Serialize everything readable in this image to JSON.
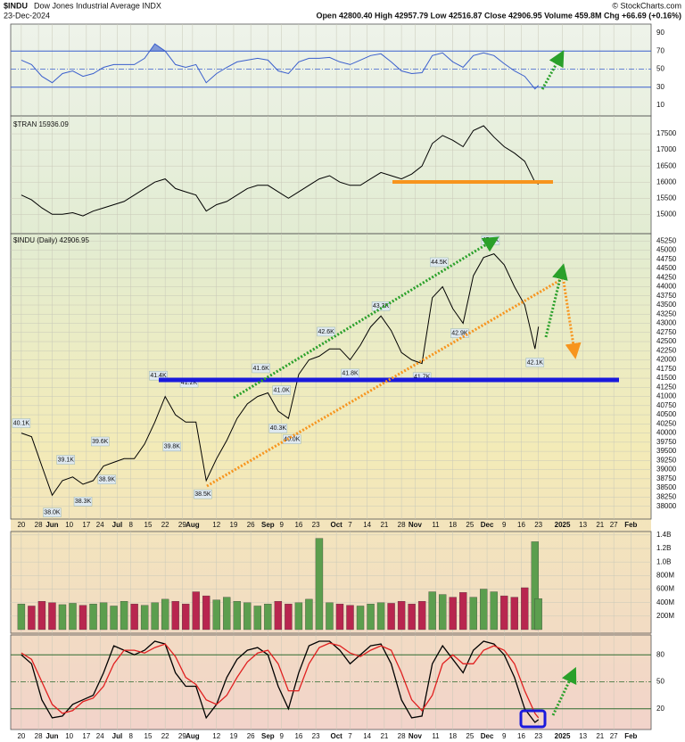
{
  "header": {
    "symbol": "$INDU",
    "name": "Dow Jones Industrial Average INDX",
    "date": "23-Dec-2024",
    "quote": "Open 42800.40 High 42957.79 Low 42516.87 Close 42906.95 Volume 459.8M Chg +66.69 (+0.16%)",
    "credit": "© StockCharts.com"
  },
  "chart_data": [
    {
      "type": "line",
      "name": "rsi",
      "x": [
        0,
        3,
        6,
        9,
        12,
        15,
        18,
        21,
        24,
        27,
        30,
        33,
        36,
        39,
        42,
        45,
        48,
        51,
        54,
        57,
        60,
        63,
        66,
        69,
        72,
        75,
        78,
        81,
        84,
        87,
        90,
        93,
        96,
        99,
        102,
        105,
        108,
        111,
        114,
        117,
        120,
        123,
        126,
        129,
        132,
        135,
        138,
        141,
        144,
        147,
        150,
        151
      ],
      "series": [
        {
          "color": "#3a5fcd",
          "values": [
            60,
            55,
            42,
            35,
            45,
            48,
            42,
            45,
            52,
            55,
            55,
            55,
            62,
            78,
            70,
            55,
            52,
            55,
            35,
            45,
            52,
            58,
            60,
            62,
            60,
            48,
            45,
            58,
            62,
            62,
            63,
            58,
            55,
            60,
            65,
            67,
            58,
            48,
            45,
            46,
            65,
            68,
            58,
            52,
            65,
            68,
            65,
            56,
            48,
            42,
            28,
            32
          ]
        }
      ],
      "xlim": [
        -3.1,
        183.9
      ],
      "ylim": [
        0,
        100
      ],
      "yticks": [
        90,
        70,
        50,
        30,
        10
      ],
      "levels": [
        70,
        50,
        30
      ]
    },
    {
      "type": "line",
      "name": "tran",
      "label": "$TRAN 15936.09",
      "x": [
        0,
        3,
        6,
        9,
        12,
        15,
        18,
        21,
        24,
        27,
        30,
        33,
        36,
        39,
        42,
        45,
        48,
        51,
        54,
        57,
        60,
        63,
        66,
        69,
        72,
        75,
        78,
        81,
        84,
        87,
        90,
        93,
        96,
        99,
        102,
        105,
        108,
        111,
        114,
        117,
        120,
        123,
        126,
        129,
        132,
        135,
        138,
        141,
        144,
        147,
        150,
        151
      ],
      "series": [
        {
          "color": "#000000",
          "values": [
            15600,
            15450,
            15200,
            15000,
            15000,
            15050,
            14950,
            15100,
            15200,
            15300,
            15400,
            15600,
            15800,
            16000,
            16100,
            15800,
            15700,
            15600,
            15100,
            15300,
            15400,
            15600,
            15800,
            15900,
            15900,
            15700,
            15500,
            15700,
            15900,
            16100,
            16200,
            16000,
            15900,
            15900,
            16100,
            16300,
            16200,
            16100,
            16250,
            16500,
            17200,
            17450,
            17300,
            17100,
            17600,
            17750,
            17400,
            17100,
            16900,
            16650,
            16000,
            15936.09
          ]
        }
      ],
      "xlim": [
        -3.1,
        183.9
      ],
      "ylim": [
        14400,
        18000
      ],
      "yticks": [
        15000,
        15500,
        16000,
        16500,
        17000,
        17500
      ]
    },
    {
      "type": "line",
      "name": "indu",
      "label": "$INDU (Daily) 42906.95",
      "x": [
        0,
        3,
        6,
        9,
        12,
        15,
        18,
        21,
        24,
        27,
        30,
        33,
        36,
        39,
        42,
        45,
        48,
        51,
        54,
        57,
        60,
        63,
        66,
        69,
        72,
        75,
        78,
        81,
        84,
        87,
        90,
        93,
        96,
        99,
        102,
        105,
        108,
        111,
        114,
        117,
        120,
        123,
        126,
        129,
        132,
        135,
        138,
        141,
        144,
        147,
        150,
        151
      ],
      "series": [
        {
          "color": "#000000",
          "values": [
            40000,
            39900,
            39100,
            38300,
            38700,
            38800,
            38600,
            38700,
            39100,
            39200,
            39300,
            39300,
            39700,
            40300,
            41000,
            40500,
            40300,
            40300,
            38700,
            39300,
            39800,
            40400,
            40800,
            41000,
            41100,
            40600,
            40400,
            41600,
            42000,
            42100,
            42300,
            42300,
            42000,
            42400,
            42900,
            43200,
            42800,
            42200,
            42000,
            41900,
            43700,
            44000,
            43400,
            43000,
            44300,
            44800,
            44900,
            44600,
            44000,
            43500,
            42300,
            42906.95
          ]
        }
      ],
      "annotations": [
        {
          "text": "40.1K",
          "x": 0,
          "value": 40100
        },
        {
          "text": "38.0K",
          "x": 9,
          "value": 38000
        },
        {
          "text": "39.1K",
          "x": 13,
          "value": 39100
        },
        {
          "text": "38.3K",
          "x": 18,
          "value": 38300
        },
        {
          "text": "39.6K",
          "x": 23,
          "value": 39600
        },
        {
          "text": "38.9K",
          "x": 25,
          "value": 38900
        },
        {
          "text": "41.4K",
          "x": 40,
          "value": 41400
        },
        {
          "text": "39.8K",
          "x": 44,
          "value": 39800
        },
        {
          "text": "41.2K",
          "x": 49,
          "value": 41200
        },
        {
          "text": "38.5K",
          "x": 53,
          "value": 38500
        },
        {
          "text": "41.6K",
          "x": 70,
          "value": 41600
        },
        {
          "text": "41.0K",
          "x": 76,
          "value": 41000
        },
        {
          "text": "40.3K",
          "x": 75,
          "value": 40300
        },
        {
          "text": "40.0K",
          "x": 79,
          "value": 40000
        },
        {
          "text": "42.6K",
          "x": 89,
          "value": 42600
        },
        {
          "text": "41.8K",
          "x": 96,
          "value": 41800
        },
        {
          "text": "43.3K",
          "x": 105,
          "value": 43300
        },
        {
          "text": "41.7K",
          "x": 117,
          "value": 41700
        },
        {
          "text": "44.5K",
          "x": 122,
          "value": 44500
        },
        {
          "text": "42.9K",
          "x": 128,
          "value": 42900
        },
        {
          "text": "45.1K",
          "x": 137,
          "value": 45100
        },
        {
          "text": "42.1K",
          "x": 150,
          "value": 42100
        }
      ],
      "xlim": [
        -3.1,
        183.9
      ],
      "ylim": [
        37650,
        45450
      ],
      "yticks": [
        38000,
        38250,
        38500,
        38750,
        39000,
        39250,
        39500,
        39750,
        40000,
        40250,
        40500,
        40750,
        41000,
        41250,
        41500,
        41750,
        42000,
        42250,
        42500,
        42750,
        43000,
        43250,
        43500,
        43750,
        44000,
        44250,
        44500,
        44750,
        45000,
        45250
      ],
      "xticks": [
        {
          "value": 0,
          "label": "20"
        },
        {
          "value": 5,
          "label": "28"
        },
        {
          "value": 9,
          "label": "Jun"
        },
        {
          "value": 14,
          "label": "10"
        },
        {
          "value": 19,
          "label": "17"
        },
        {
          "value": 23,
          "label": "24"
        },
        {
          "value": 28,
          "label": "Jul"
        },
        {
          "value": 32,
          "label": "8"
        },
        {
          "value": 37,
          "label": "15"
        },
        {
          "value": 42,
          "label": "22"
        },
        {
          "value": 47,
          "label": "29"
        },
        {
          "value": 50,
          "label": "Aug"
        },
        {
          "value": 57,
          "label": "12"
        },
        {
          "value": 62,
          "label": "19"
        },
        {
          "value": 67,
          "label": "26"
        },
        {
          "value": 72,
          "label": "Sep"
        },
        {
          "value": 76,
          "label": "9"
        },
        {
          "value": 81,
          "label": "16"
        },
        {
          "value": 86,
          "label": "23"
        },
        {
          "value": 92,
          "label": "Oct"
        },
        {
          "value": 96,
          "label": "7"
        },
        {
          "value": 101,
          "label": "14"
        },
        {
          "value": 106,
          "label": "21"
        },
        {
          "value": 111,
          "label": "28"
        },
        {
          "value": 115,
          "label": "Nov"
        },
        {
          "value": 121,
          "label": "11"
        },
        {
          "value": 126,
          "label": "18"
        },
        {
          "value": 131,
          "label": "25"
        },
        {
          "value": 136,
          "label": "Dec"
        },
        {
          "value": 141,
          "label": "9"
        },
        {
          "value": 146,
          "label": "16"
        },
        {
          "value": 151,
          "label": "23"
        },
        {
          "value": 158,
          "label": "2025"
        },
        {
          "value": 164,
          "label": "13"
        },
        {
          "value": 169,
          "label": "21"
        },
        {
          "value": 173,
          "label": "27"
        },
        {
          "value": 178,
          "label": "Feb"
        }
      ]
    },
    {
      "type": "bar",
      "name": "volume",
      "x": [
        0,
        3,
        6,
        9,
        12,
        15,
        18,
        21,
        24,
        27,
        30,
        33,
        36,
        39,
        42,
        45,
        48,
        51,
        54,
        57,
        60,
        63,
        66,
        69,
        72,
        75,
        78,
        81,
        84,
        87,
        90,
        93,
        96,
        99,
        102,
        105,
        108,
        111,
        114,
        117,
        120,
        123,
        126,
        129,
        132,
        135,
        138,
        141,
        144,
        147,
        150,
        151
      ],
      "values": [
        380000000,
        350000000,
        420000000,
        400000000,
        370000000,
        390000000,
        360000000,
        380000000,
        400000000,
        350000000,
        420000000,
        380000000,
        360000000,
        400000000,
        450000000,
        420000000,
        380000000,
        560000000,
        500000000,
        440000000,
        480000000,
        420000000,
        400000000,
        350000000,
        380000000,
        420000000,
        380000000,
        400000000,
        450000000,
        1350000000,
        400000000,
        380000000,
        360000000,
        350000000,
        380000000,
        400000000,
        390000000,
        420000000,
        380000000,
        420000000,
        560000000,
        520000000,
        480000000,
        550000000,
        480000000,
        600000000,
        560000000,
        500000000,
        480000000,
        620000000,
        1300000000,
        459800000
      ],
      "colors": [
        "#5c9e4e",
        "#b8264f",
        "#b8264f",
        "#b8264f",
        "#5c9e4e",
        "#5c9e4e",
        "#b8264f",
        "#5c9e4e",
        "#5c9e4e",
        "#5c9e4e",
        "#5c9e4e",
        "#b8264f",
        "#5c9e4e",
        "#5c9e4e",
        "#5c9e4e",
        "#b8264f",
        "#b8264f",
        "#b8264f",
        "#b8264f",
        "#5c9e4e",
        "#5c9e4e",
        "#5c9e4e",
        "#5c9e4e",
        "#5c9e4e",
        "#5c9e4e",
        "#b8264f",
        "#b8264f",
        "#5c9e4e",
        "#5c9e4e",
        "#5c9e4e",
        "#5c9e4e",
        "#b8264f",
        "#b8264f",
        "#5c9e4e",
        "#5c9e4e",
        "#5c9e4e",
        "#b8264f",
        "#b8264f",
        "#b8264f",
        "#b8264f",
        "#5c9e4e",
        "#5c9e4e",
        "#b8264f",
        "#b8264f",
        "#5c9e4e",
        "#5c9e4e",
        "#5c9e4e",
        "#b8264f",
        "#b8264f",
        "#b8264f",
        "#5c9e4e",
        "#5c9e4e"
      ],
      "xlim": [
        -3.1,
        183.9
      ],
      "ylim": [
        0,
        1490000000
      ],
      "yticks": [
        {
          "value": 200000000,
          "label": "200M"
        },
        {
          "value": 400000000,
          "label": "400M"
        },
        {
          "value": 600000000,
          "label": "600M"
        },
        {
          "value": 800000000,
          "label": "800M"
        },
        {
          "value": 1000000000,
          "label": "1.0B"
        },
        {
          "value": 1200000000,
          "label": "1.2B"
        },
        {
          "value": 1400000000,
          "label": "1.4B"
        }
      ]
    },
    {
      "type": "line",
      "name": "stoch",
      "x": [
        0,
        3,
        6,
        9,
        12,
        15,
        18,
        21,
        24,
        27,
        30,
        33,
        36,
        39,
        42,
        45,
        48,
        51,
        54,
        57,
        60,
        63,
        66,
        69,
        72,
        75,
        78,
        81,
        84,
        87,
        90,
        93,
        96,
        99,
        102,
        105,
        108,
        111,
        114,
        117,
        120,
        123,
        126,
        129,
        132,
        135,
        138,
        141,
        144,
        147,
        150,
        151
      ],
      "series": [
        {
          "color": "#000000",
          "values": [
            80,
            70,
            30,
            10,
            12,
            25,
            30,
            35,
            60,
            90,
            85,
            80,
            85,
            95,
            92,
            60,
            45,
            45,
            10,
            25,
            55,
            75,
            85,
            88,
            80,
            45,
            20,
            60,
            90,
            95,
            95,
            85,
            70,
            80,
            90,
            92,
            70,
            30,
            10,
            12,
            70,
            90,
            75,
            60,
            85,
            95,
            92,
            80,
            55,
            20,
            5,
            8
          ]
        },
        {
          "color": "#e02020",
          "values": [
            82,
            75,
            50,
            25,
            15,
            18,
            28,
            32,
            45,
            70,
            85,
            85,
            82,
            88,
            92,
            78,
            55,
            47,
            30,
            25,
            35,
            55,
            72,
            82,
            85,
            70,
            40,
            40,
            70,
            88,
            93,
            90,
            82,
            78,
            85,
            90,
            85,
            60,
            30,
            18,
            35,
            70,
            80,
            70,
            70,
            85,
            90,
            85,
            70,
            40,
            15,
            10
          ]
        }
      ],
      "xlim": [
        -3.1,
        183.9
      ],
      "ylim": [
        0,
        100
      ],
      "yticks": [
        80,
        50,
        20
      ],
      "levels": [
        80,
        50,
        20
      ]
    }
  ]
}
